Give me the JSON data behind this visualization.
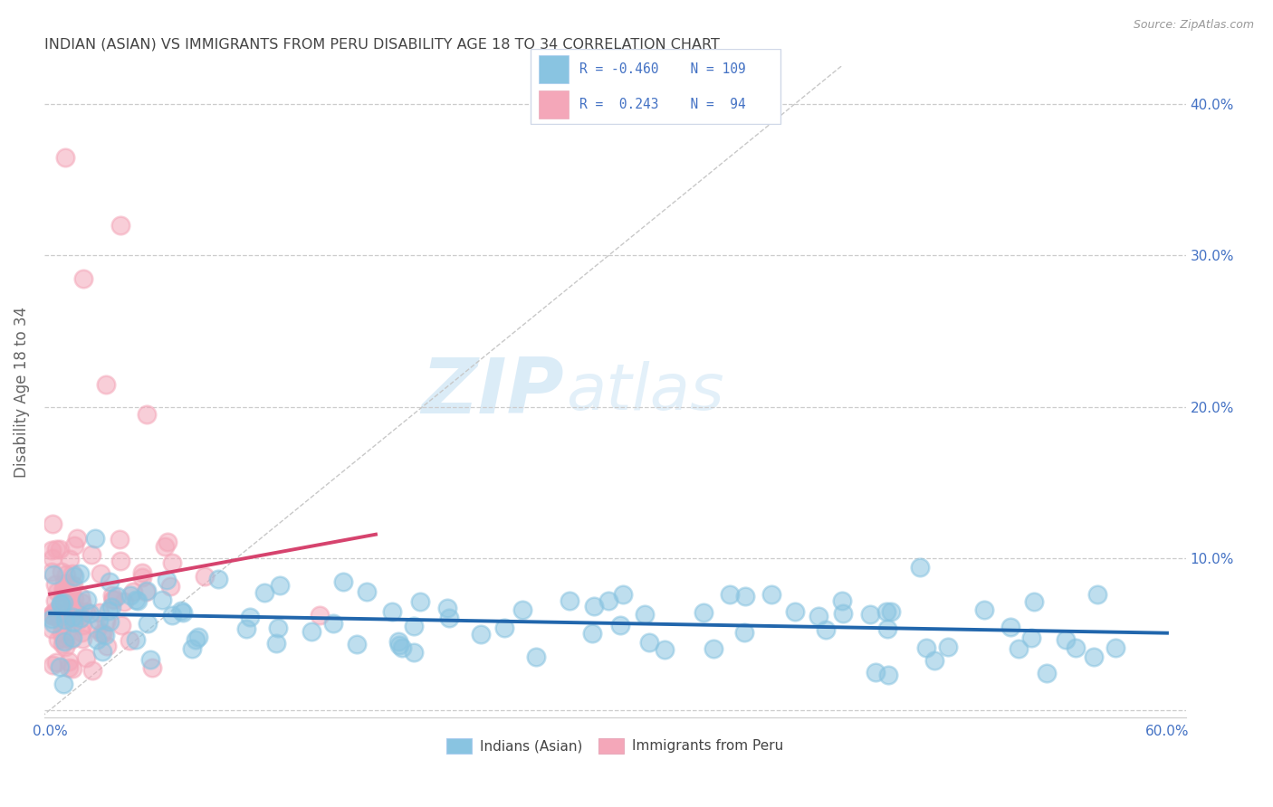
{
  "title": "INDIAN (ASIAN) VS IMMIGRANTS FROM PERU DISABILITY AGE 18 TO 34 CORRELATION CHART",
  "source": "Source: ZipAtlas.com",
  "xlabel": "",
  "ylabel": "Disability Age 18 to 34",
  "xlim": [
    0.0,
    0.62
  ],
  "ylim": [
    -0.01,
    0.43
  ],
  "plot_xlim": [
    0.0,
    0.6
  ],
  "plot_ylim": [
    0.0,
    0.42
  ],
  "xticks": [
    0.0,
    0.6
  ],
  "xticklabels": [
    "0.0%",
    "60.0%"
  ],
  "yticks": [
    0.0,
    0.1,
    0.2,
    0.3,
    0.4
  ],
  "yticklabels_right": [
    "",
    "10.0%",
    "20.0%",
    "30.0%",
    "40.0%"
  ],
  "blue_R": -0.46,
  "blue_N": 109,
  "pink_R": 0.243,
  "pink_N": 94,
  "blue_color": "#89c4e1",
  "blue_edge_color": "#89c4e1",
  "pink_color": "#f4a7b9",
  "pink_edge_color": "#f4a7b9",
  "blue_line_color": "#2166ac",
  "pink_line_color": "#d6436e",
  "legend_blue_label": "Indians (Asian)",
  "legend_pink_label": "Immigrants from Peru",
  "watermark_zip": "ZIP",
  "watermark_atlas": "atlas",
  "background_color": "#ffffff",
  "grid_color": "#cccccc",
  "title_color": "#444444",
  "axis_label_color": "#666666",
  "tick_color": "#5577aa",
  "right_tick_color": "#4472c4",
  "legend_text_color": "#4472c4"
}
